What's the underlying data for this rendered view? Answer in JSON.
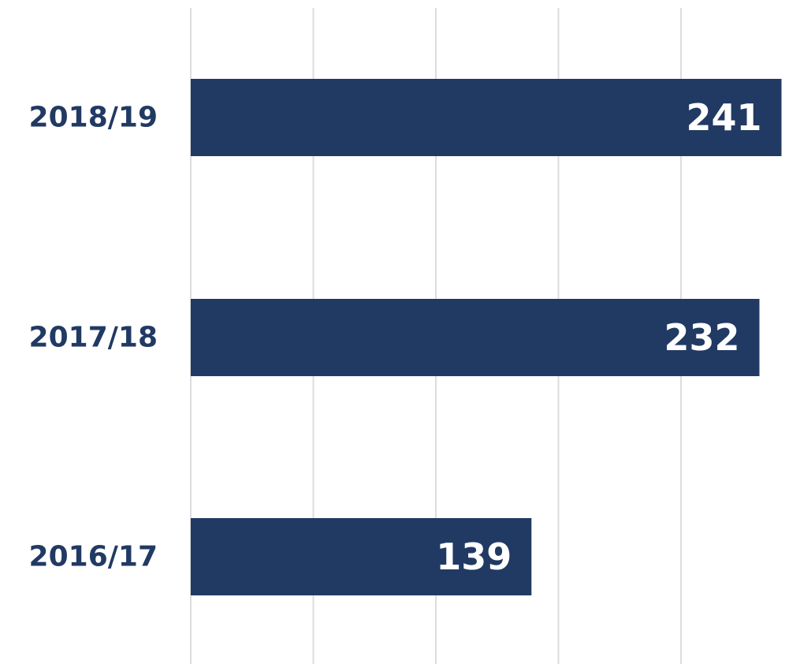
{
  "chart_data": {
    "type": "bar",
    "orientation": "horizontal",
    "categories": [
      "2018/19",
      "2017/18",
      "2016/17"
    ],
    "values": [
      241,
      232,
      139
    ],
    "color": "#213a63",
    "xlim": [
      0,
      245
    ],
    "xticks": [
      0,
      50,
      100,
      150,
      200
    ],
    "grid": true
  }
}
